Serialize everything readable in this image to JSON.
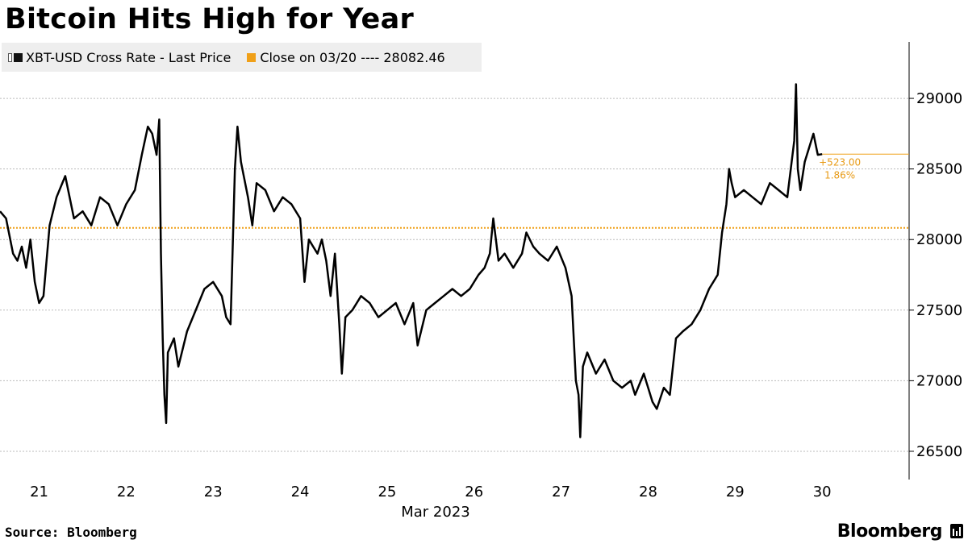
{
  "title": "Bitcoin Hits High for Year",
  "legend": {
    "series_label": "XBT-USD Cross Rate - Last Price",
    "ref_label": "Close on 03/20 ---- 28082.46"
  },
  "source": "Source: Bloomberg",
  "brand": "Bloomberg",
  "colors": {
    "series": "#000000",
    "reference": "#f0a018",
    "annotation": "#e89b16",
    "grid": "#bbbbbb"
  },
  "chart_data": {
    "type": "line",
    "xlabel": "Mar 2023",
    "x_ticks": [
      "21",
      "22",
      "23",
      "24",
      "25",
      "26",
      "27",
      "28",
      "29",
      "30"
    ],
    "x_range": [
      20.55,
      31.0
    ],
    "y_ticks": [
      26500,
      27000,
      27500,
      28000,
      28500,
      29000
    ],
    "ylim": [
      26300,
      29400
    ],
    "grid": true,
    "y_axis_side": "right",
    "reference_line": {
      "label": "Close on 03/20",
      "value": 28082.46
    },
    "last_value_line": 28605,
    "annotation": {
      "change": "+523.00",
      "percent": "1.86%"
    },
    "series": [
      {
        "name": "XBT-USD Cross Rate - Last Price",
        "x": [
          20.55,
          20.62,
          20.7,
          20.75,
          20.8,
          20.85,
          20.9,
          20.95,
          21.0,
          21.05,
          21.12,
          21.2,
          21.3,
          21.4,
          21.5,
          21.6,
          21.7,
          21.8,
          21.9,
          22.0,
          22.1,
          22.18,
          22.25,
          22.3,
          22.35,
          22.38,
          22.4,
          22.42,
          22.44,
          22.46,
          22.48,
          22.55,
          22.6,
          22.7,
          22.8,
          22.9,
          23.0,
          23.1,
          23.15,
          23.2,
          23.25,
          23.28,
          23.32,
          23.4,
          23.45,
          23.5,
          23.6,
          23.7,
          23.8,
          23.9,
          24.0,
          24.05,
          24.1,
          24.15,
          24.2,
          24.25,
          24.3,
          24.35,
          24.4,
          24.45,
          24.48,
          24.52,
          24.6,
          24.7,
          24.8,
          24.9,
          25.0,
          25.1,
          25.2,
          25.3,
          25.35,
          25.45,
          25.55,
          25.65,
          25.75,
          25.85,
          25.95,
          26.05,
          26.12,
          26.18,
          26.22,
          26.28,
          26.35,
          26.45,
          26.55,
          26.6,
          26.68,
          26.75,
          26.85,
          26.95,
          27.05,
          27.12,
          27.17,
          27.2,
          27.22,
          27.25,
          27.3,
          27.4,
          27.5,
          27.6,
          27.7,
          27.8,
          27.85,
          27.95,
          28.05,
          28.1,
          28.18,
          28.25,
          28.32,
          28.4,
          28.5,
          28.6,
          28.7,
          28.8,
          28.85,
          28.9,
          28.93,
          28.96,
          29.0,
          29.1,
          29.2,
          29.3,
          29.4,
          29.5,
          29.6,
          29.68,
          29.7,
          29.72,
          29.75,
          29.8,
          29.85,
          29.9,
          29.95,
          30.0
        ],
        "values": [
          28200,
          28150,
          27900,
          27850,
          27950,
          27800,
          28000,
          27700,
          27550,
          27600,
          28100,
          28300,
          28450,
          28150,
          28200,
          28100,
          28300,
          28250,
          28100,
          28250,
          28350,
          28600,
          28800,
          28750,
          28600,
          28850,
          27900,
          27300,
          26900,
          26700,
          27200,
          27300,
          27100,
          27350,
          27500,
          27650,
          27700,
          27600,
          27450,
          27400,
          28500,
          28800,
          28550,
          28300,
          28100,
          28400,
          28350,
          28200,
          28300,
          28250,
          28150,
          27700,
          28000,
          27950,
          27900,
          28000,
          27850,
          27600,
          27900,
          27400,
          27050,
          27450,
          27500,
          27600,
          27550,
          27450,
          27500,
          27550,
          27400,
          27550,
          27250,
          27500,
          27550,
          27600,
          27650,
          27600,
          27650,
          27750,
          27800,
          27900,
          28150,
          27850,
          27900,
          27800,
          27900,
          28050,
          27950,
          27900,
          27850,
          27950,
          27800,
          27600,
          27000,
          26900,
          26600,
          27100,
          27200,
          27050,
          27150,
          27000,
          26950,
          27000,
          26900,
          27050,
          26850,
          26800,
          26950,
          26900,
          27300,
          27350,
          27400,
          27500,
          27650,
          27750,
          28050,
          28250,
          28500,
          28400,
          28300,
          28350,
          28300,
          28250,
          28400,
          28350,
          28300,
          28700,
          29100,
          28500,
          28350,
          28550,
          28650,
          28750,
          28600,
          28605
        ]
      }
    ]
  }
}
